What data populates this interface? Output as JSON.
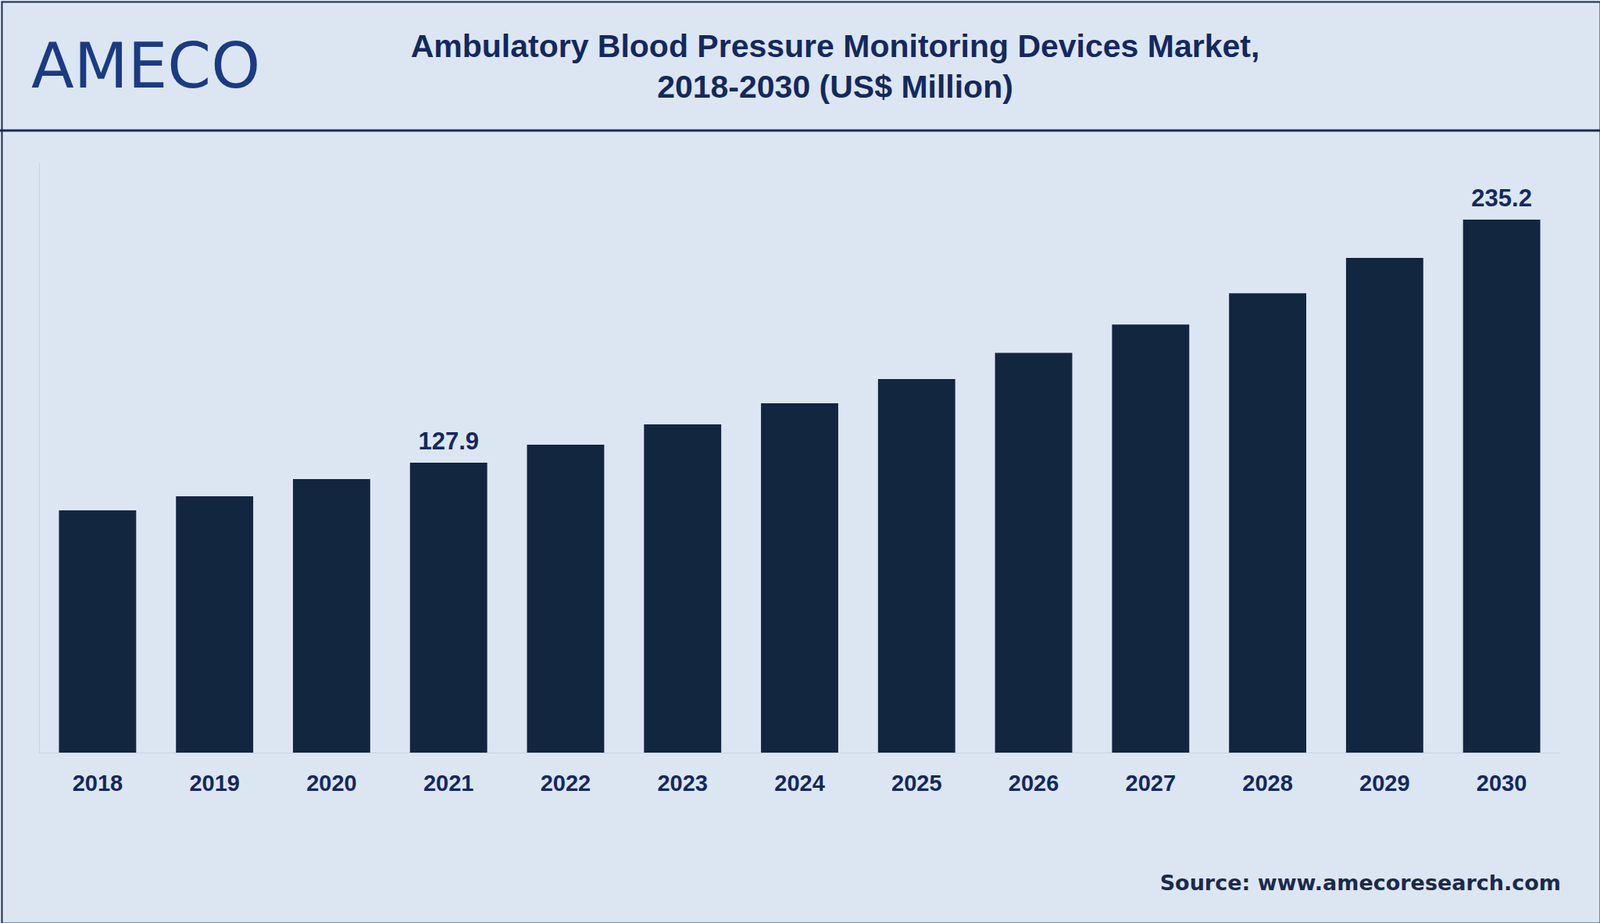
{
  "chart_data": {
    "type": "bar",
    "title": "Ambulatory Blood Pressure Monitoring Devices Market,\n2018-2030 (US$ Million)",
    "logo": "AMECO",
    "source": "Source: www.amecoresearch.com",
    "categories": [
      "2018",
      "2019",
      "2020",
      "2021",
      "2022",
      "2023",
      "2024",
      "2025",
      "2026",
      "2027",
      "2028",
      "2029",
      "2030"
    ],
    "values": [
      106.9,
      113.1,
      120.7,
      127.9,
      135.9,
      144.8,
      154.1,
      164.8,
      176.4,
      188.9,
      202.7,
      218.3,
      235.2
    ],
    "value_labels": [
      null,
      null,
      null,
      "127.9",
      null,
      null,
      null,
      null,
      null,
      null,
      null,
      null,
      "235.2"
    ],
    "data_labels": true,
    "color": "#13263f",
    "ylim": [
      0,
      260
    ],
    "grid": false,
    "tick_labels": "x"
  }
}
